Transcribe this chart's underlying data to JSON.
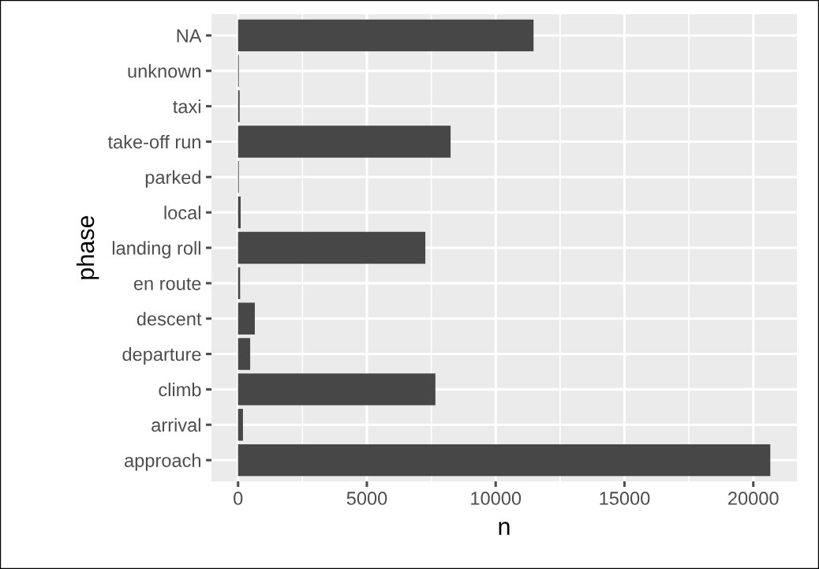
{
  "chart_data": {
    "type": "bar",
    "orientation": "horizontal",
    "xlabel": "n",
    "ylabel": "phase",
    "categories": [
      "NA",
      "unknown",
      "taxi",
      "take-off run",
      "parked",
      "local",
      "landing roll",
      "en route",
      "descent",
      "departure",
      "climb",
      "arrival",
      "approach"
    ],
    "values": [
      11470,
      30,
      60,
      8250,
      30,
      100,
      7270,
      80,
      650,
      470,
      7660,
      190,
      20660
    ],
    "color": "#474747",
    "xlim": [
      -1033,
      21693
    ],
    "xticks": [
      0,
      5000,
      10000,
      15000,
      20000
    ],
    "grid": true,
    "legend": false
  }
}
